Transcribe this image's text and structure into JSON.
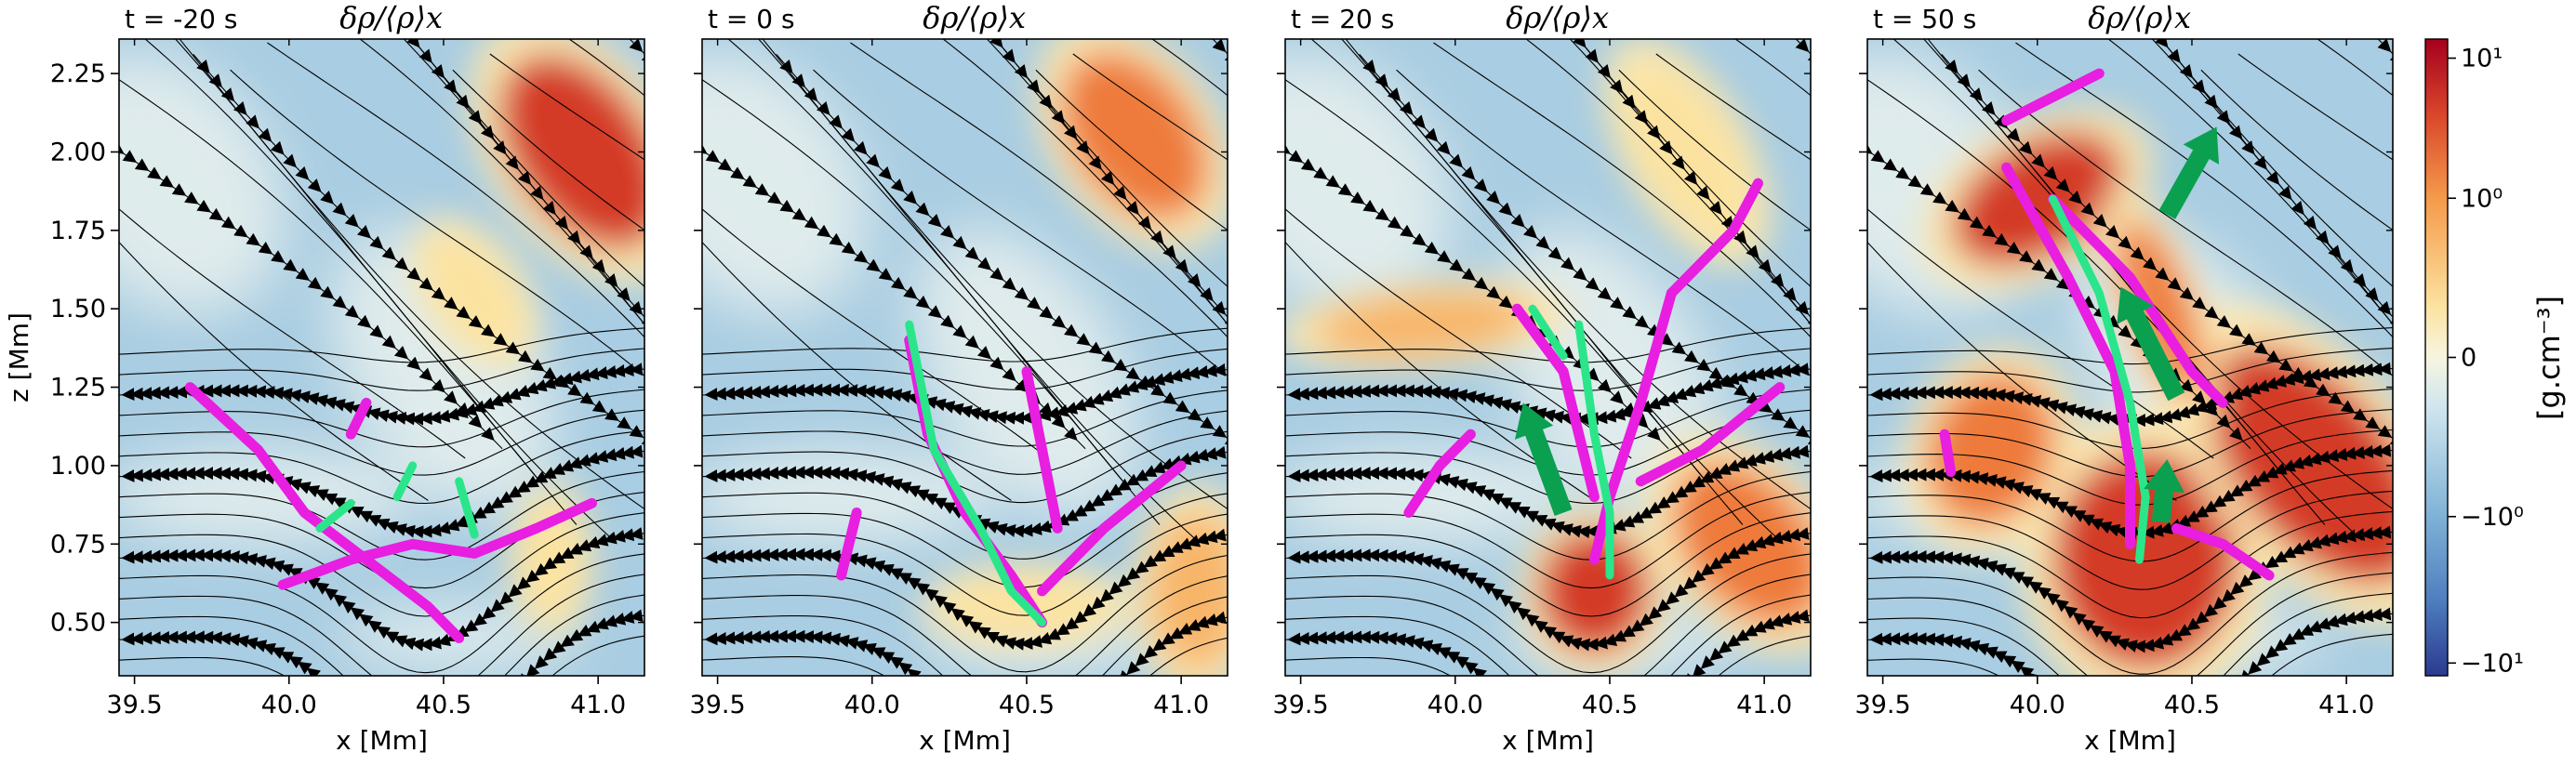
{
  "chart_data": {
    "type": "heatmap",
    "panels": [
      {
        "time_label": "t = -20 s",
        "title": "δρ/⟨ρ⟩x"
      },
      {
        "time_label": "t = 0 s",
        "title": "δρ/⟨ρ⟩x"
      },
      {
        "time_label": "t = 20 s",
        "title": "δρ/⟨ρ⟩x"
      },
      {
        "time_label": "t = 50 s",
        "title": "δρ/⟨ρ⟩x"
      }
    ],
    "xlabel": "x [Mm]",
    "ylabel": "z [Mm]",
    "xlim": [
      39.45,
      41.15
    ],
    "ylim": [
      0.33,
      2.36
    ],
    "xticks": [
      39.5,
      40.0,
      40.5,
      41.0
    ],
    "xtick_labels": [
      "39.5",
      "40.0",
      "40.5",
      "41.0"
    ],
    "yticks": [
      0.5,
      0.75,
      1.0,
      1.25,
      1.5,
      1.75,
      2.0,
      2.25
    ],
    "ytick_labels": [
      "0.50",
      "0.75",
      "1.00",
      "1.25",
      "1.50",
      "1.75",
      "2.00",
      "2.25"
    ],
    "colorbar": {
      "label": "[g.cm⁻³]",
      "scale": "symlog",
      "ticks": [
        -10,
        -1,
        0,
        1,
        10
      ],
      "tick_labels": [
        "−10¹",
        "−10⁰",
        "0",
        "10⁰",
        "10¹"
      ],
      "colors": {
        "neg_max": "#2b3a8f",
        "neg": "#7fb2d6",
        "zero": "#f7f5e0",
        "pos": "#f59a4a",
        "pos_max": "#a5001e"
      }
    },
    "overlays": {
      "streamlines_color": "#000000",
      "magenta_contour_color": "#e81ee0",
      "green_contour_color": "#2be58b",
      "arrow_color": "#0aa050"
    }
  }
}
